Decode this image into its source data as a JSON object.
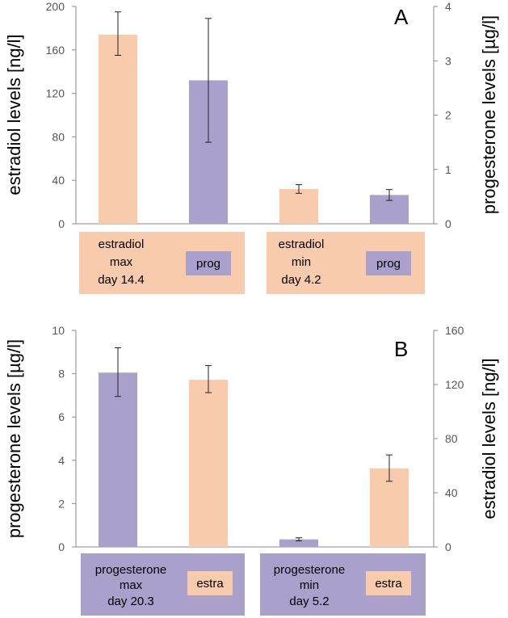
{
  "colors": {
    "estradiol": "#F7CBAC",
    "progesterone": "#A9A1CC",
    "axis": "#888888",
    "errbar": "#222222"
  },
  "chart_data": [
    {
      "type": "bar",
      "panel": "A",
      "left_axis": {
        "label": "estradiol levels [ng/l]",
        "min": 0,
        "max": 200,
        "ticks": [
          0,
          40,
          80,
          120,
          160,
          200
        ]
      },
      "right_axis": {
        "label": "progesterone levels [µg/l]",
        "min": 0,
        "max": 4,
        "ticks": [
          0,
          1,
          2,
          3,
          4
        ]
      },
      "bars": [
        {
          "series": "estradiol",
          "axis": "left",
          "value": 174,
          "err_low": 155,
          "err_high": 195
        },
        {
          "series": "progesterone",
          "axis": "right",
          "value": 2.64,
          "err_low": 1.5,
          "err_high": 3.78
        },
        {
          "series": "estradiol",
          "axis": "left",
          "value": 32,
          "err_low": 28,
          "err_high": 36
        },
        {
          "series": "progesterone",
          "axis": "right",
          "value": 0.53,
          "err_low": 0.43,
          "err_high": 0.63
        }
      ],
      "groups": [
        {
          "lines": [
            "estradiol",
            "max",
            "day 14.4"
          ],
          "badge": "prog"
        },
        {
          "lines": [
            "estradiol",
            "min",
            "day 4.2"
          ],
          "badge": "prog"
        }
      ]
    },
    {
      "type": "bar",
      "panel": "B",
      "left_axis": {
        "label": "progesterone levels [µg/l]",
        "min": 0,
        "max": 10,
        "ticks": [
          0,
          2,
          4,
          6,
          8,
          10
        ]
      },
      "right_axis": {
        "label": "estradiol levels [ng/l]",
        "min": 0,
        "max": 160,
        "ticks": [
          0,
          40,
          80,
          120,
          160
        ]
      },
      "bars": [
        {
          "series": "progesterone",
          "axis": "left",
          "value": 8.05,
          "err_low": 6.95,
          "err_high": 9.2
        },
        {
          "series": "estradiol",
          "axis": "right",
          "value": 123.5,
          "err_low": 114,
          "err_high": 134
        },
        {
          "series": "progesterone",
          "axis": "left",
          "value": 0.35,
          "err_low": 0.28,
          "err_high": 0.42
        },
        {
          "series": "estradiol",
          "axis": "right",
          "value": 58,
          "err_low": 48.5,
          "err_high": 68
        }
      ],
      "groups": [
        {
          "lines": [
            "progesterone",
            "max",
            "day 20.3"
          ],
          "badge": "estra"
        },
        {
          "lines": [
            "progesterone",
            "min",
            "day 5.2"
          ],
          "badge": "estra"
        }
      ]
    }
  ]
}
